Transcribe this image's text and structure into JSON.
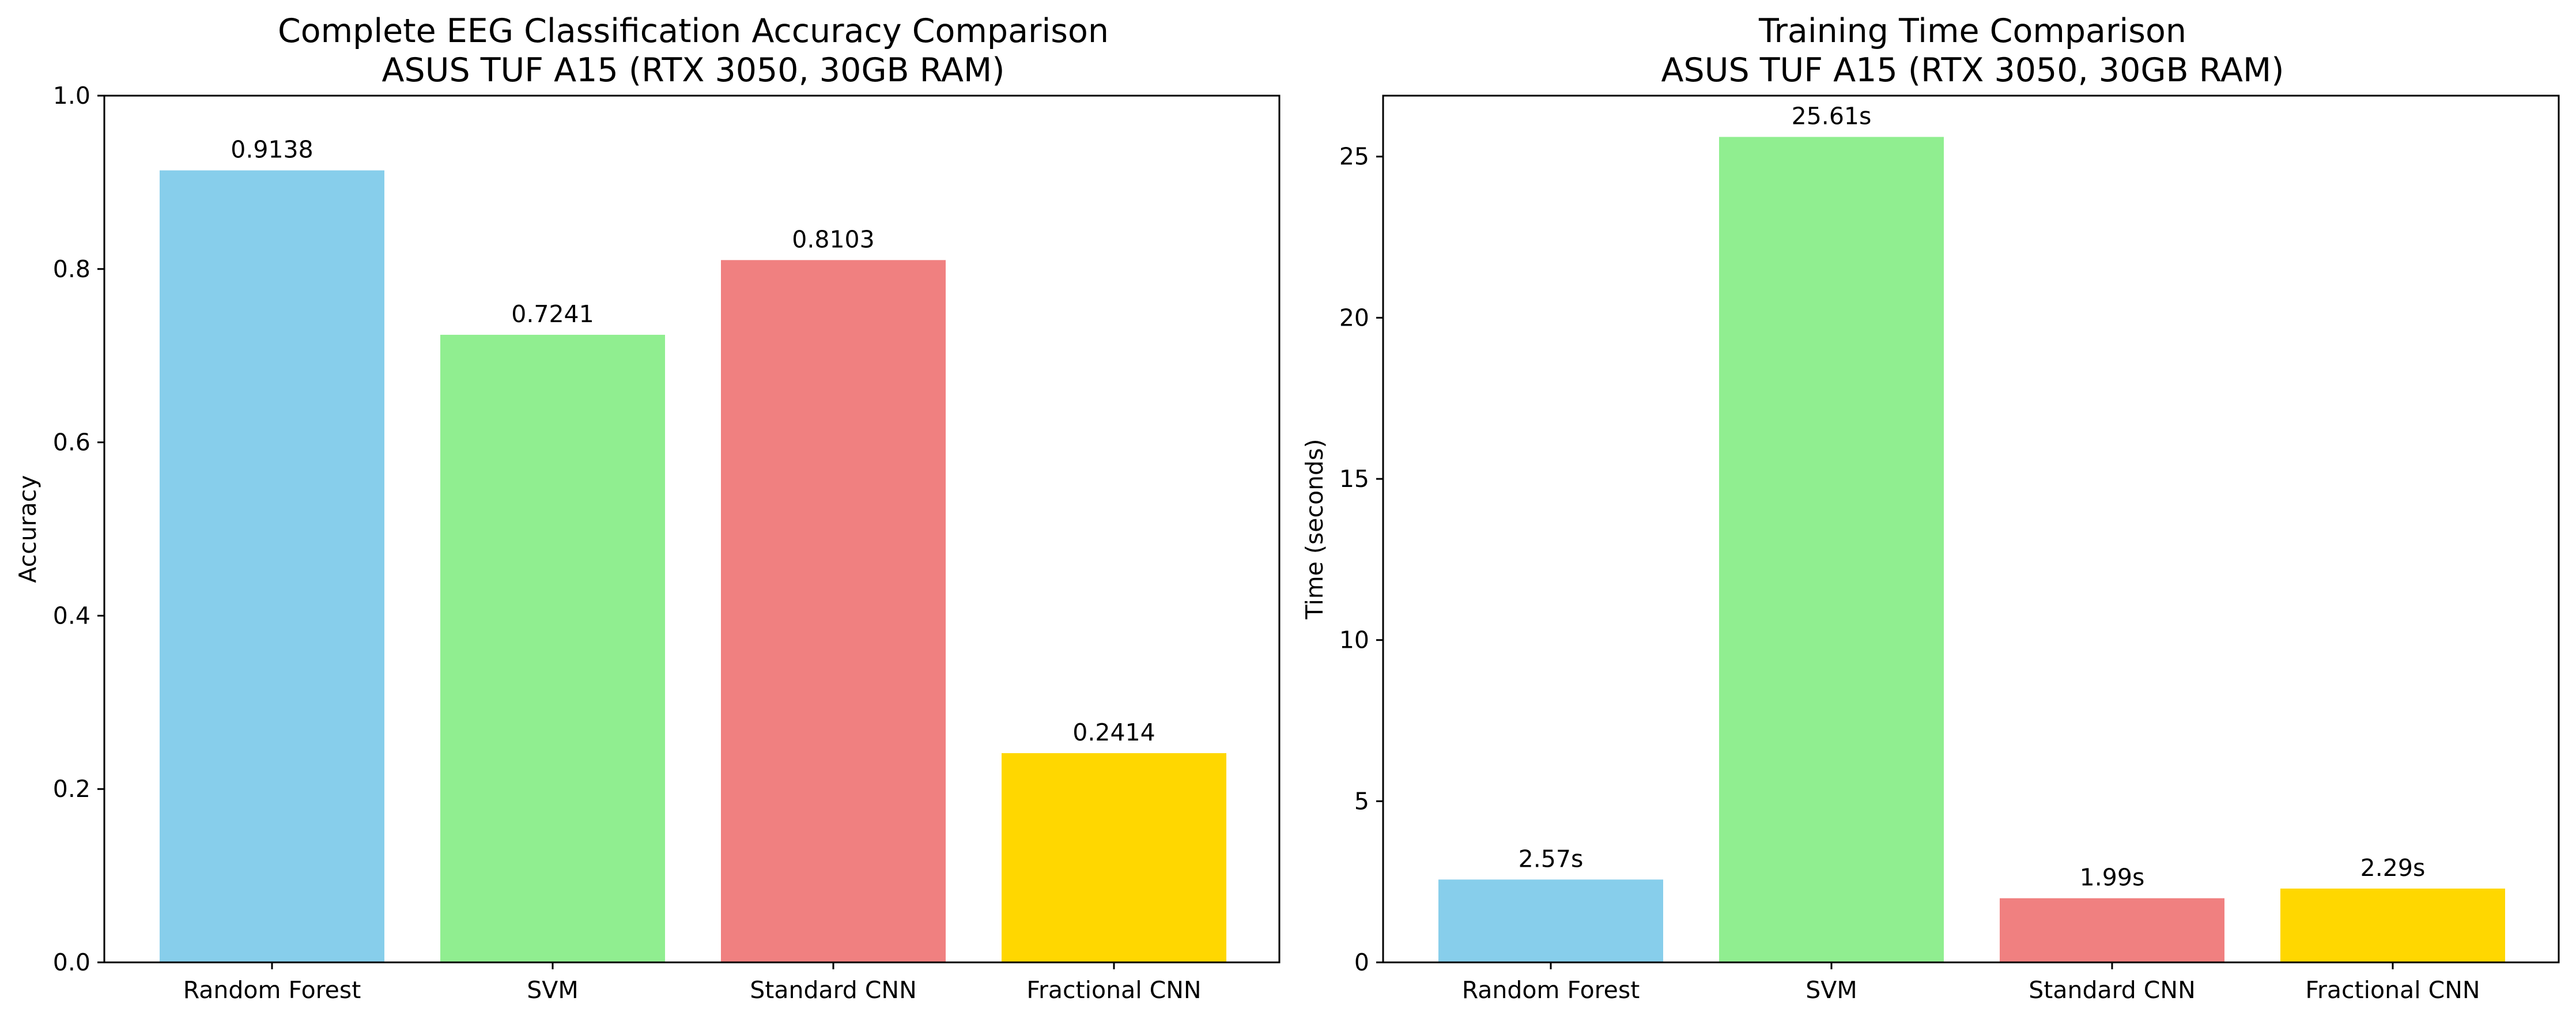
{
  "figure": {
    "colors": [
      "#87CEEB",
      "#90EE90",
      "#F08080",
      "#FFD700"
    ]
  },
  "chart_data": [
    {
      "type": "bar",
      "title_line1": "Complete EEG Classification Accuracy Comparison",
      "title_line2": "ASUS TUF A15 (RTX 3050, 30GB RAM)",
      "xlabel": "",
      "ylabel": "Accuracy",
      "categories": [
        "Random Forest",
        "SVM",
        "Standard CNN",
        "Fractional CNN"
      ],
      "values": [
        0.9138,
        0.7241,
        0.8103,
        0.2414
      ],
      "data_labels": [
        "0.9138",
        "0.7241",
        "0.8103",
        "0.2414"
      ],
      "ylim": [
        0,
        1.0
      ],
      "yticks": [
        0.0,
        0.2,
        0.4,
        0.6,
        0.8,
        1.0
      ],
      "ytick_labels": [
        "0.0",
        "0.2",
        "0.4",
        "0.6",
        "0.8",
        "1.0"
      ],
      "grid": false
    },
    {
      "type": "bar",
      "title_line1": "Training Time Comparison",
      "title_line2": "ASUS TUF A15 (RTX 3050, 30GB RAM)",
      "xlabel": "",
      "ylabel": "Time (seconds)",
      "categories": [
        "Random Forest",
        "SVM",
        "Standard CNN",
        "Fractional CNN"
      ],
      "values": [
        2.57,
        25.61,
        1.99,
        2.29
      ],
      "data_labels": [
        "2.57s",
        "25.61s",
        "1.99s",
        "2.29s"
      ],
      "ylim": [
        0,
        26.89
      ],
      "yticks": [
        0,
        5,
        10,
        15,
        20,
        25
      ],
      "ytick_labels": [
        "0",
        "5",
        "10",
        "15",
        "20",
        "25"
      ],
      "grid": false
    }
  ]
}
